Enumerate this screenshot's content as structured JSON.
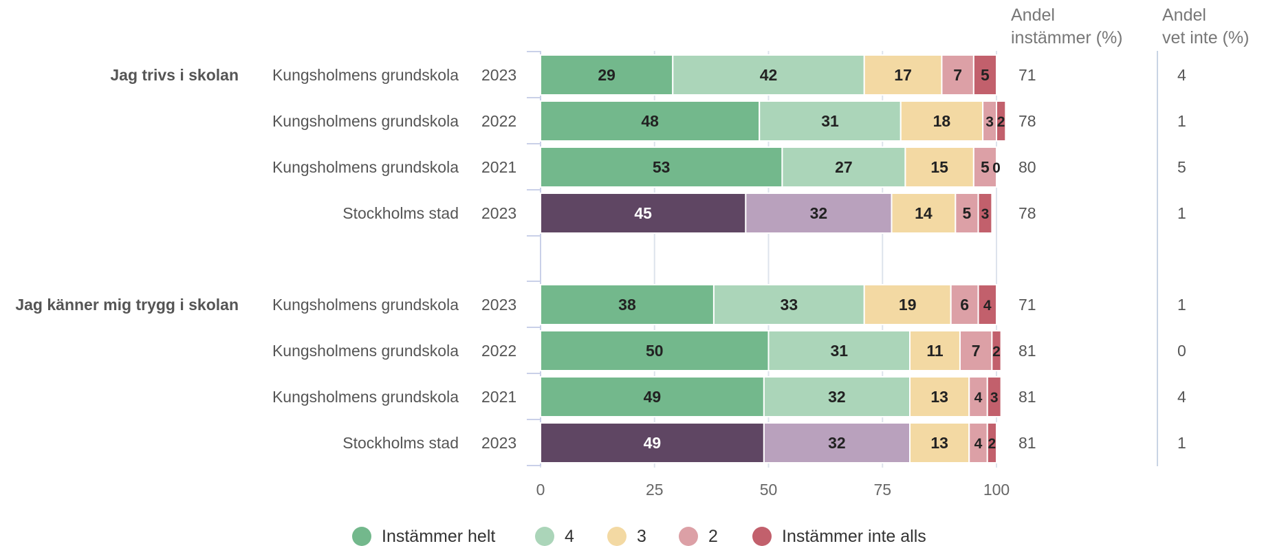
{
  "chart_data": {
    "type": "bar",
    "orientation": "horizontal",
    "stacked": true,
    "xlim": [
      0,
      100
    ],
    "x_ticks": [
      "0",
      "25",
      "50",
      "75",
      "100"
    ],
    "grid": true,
    "legend_position": "bottom",
    "column_headers": {
      "andel_instammer": [
        "Andel",
        "instämmer (%)"
      ],
      "andel_vet_inte": [
        "Andel",
        "vet inte (%)"
      ]
    },
    "categories": [
      "Instämmer helt",
      "4",
      "3",
      "2",
      "Instämmer inte alls"
    ],
    "colors": {
      "school": [
        "#73b88c",
        "#abd5b9",
        "#f3d9a3",
        "#dca0a6",
        "#c2606c"
      ],
      "city": [
        "#5f4663",
        "#b9a1bd",
        "#f3d9a3",
        "#dca0a6",
        "#c2606c"
      ],
      "legend": [
        "#73b88c",
        "#abd5b9",
        "#f3d9a3",
        "#dca0a6",
        "#c2606c"
      ]
    },
    "groups": [
      {
        "question": "Jag trivs i skolan",
        "rows": [
          {
            "name": "Kungsholmens grundskola",
            "year": "2023",
            "kind": "school",
            "values": [
              29,
              42,
              17,
              7,
              5
            ],
            "instammer": "71",
            "vet_inte": "4"
          },
          {
            "name": "Kungsholmens grundskola",
            "year": "2022",
            "kind": "school",
            "values": [
              48,
              31,
              18,
              3,
              2
            ],
            "instammer": "78",
            "vet_inte": "1"
          },
          {
            "name": "Kungsholmens grundskola",
            "year": "2021",
            "kind": "school",
            "values": [
              53,
              27,
              15,
              5,
              0
            ],
            "instammer": "80",
            "vet_inte": "5"
          },
          {
            "name": "Stockholms stad",
            "year": "2023",
            "kind": "city",
            "values": [
              45,
              32,
              14,
              5,
              3
            ],
            "instammer": "78",
            "vet_inte": "1"
          }
        ]
      },
      {
        "question": "Jag känner mig trygg i skolan",
        "rows": [
          {
            "name": "Kungsholmens grundskola",
            "year": "2023",
            "kind": "school",
            "values": [
              38,
              33,
              19,
              6,
              4
            ],
            "instammer": "71",
            "vet_inte": "1"
          },
          {
            "name": "Kungsholmens grundskola",
            "year": "2022",
            "kind": "school",
            "values": [
              50,
              31,
              11,
              7,
              2
            ],
            "instammer": "81",
            "vet_inte": "0"
          },
          {
            "name": "Kungsholmens grundskola",
            "year": "2021",
            "kind": "school",
            "values": [
              49,
              32,
              13,
              4,
              3
            ],
            "instammer": "81",
            "vet_inte": "4"
          },
          {
            "name": "Stockholms stad",
            "year": "2023",
            "kind": "city",
            "values": [
              49,
              32,
              13,
              4,
              2
            ],
            "instammer": "81",
            "vet_inte": "1"
          }
        ]
      }
    ]
  }
}
